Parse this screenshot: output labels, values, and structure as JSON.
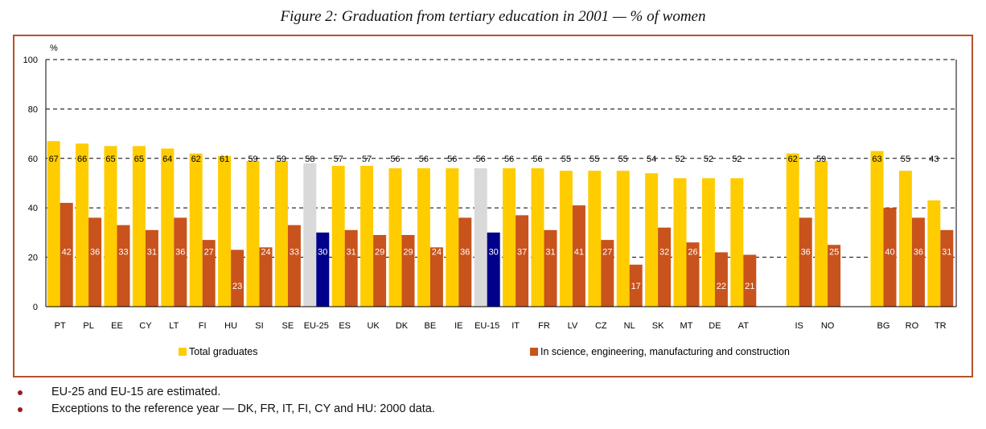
{
  "title": "Figure 2: Graduation from tertiary education in 2001 — % of women",
  "colors": {
    "total": "#ffcc00",
    "science": "#c8531c",
    "estimate_total": "#d9d9d9",
    "estimate_science": "#00008b",
    "frame": "#b5532a"
  },
  "chart_data": {
    "type": "bar",
    "unit_label": "%",
    "ylim": [
      0,
      100
    ],
    "yticks": [
      0,
      20,
      40,
      60,
      80,
      100
    ],
    "grid": "dashed horizontal",
    "legend_position": "bottom",
    "categories": [
      "PT",
      "PL",
      "EE",
      "CY",
      "LT",
      "FI",
      "HU",
      "SI",
      "SE",
      "EU-25",
      "ES",
      "UK",
      "DK",
      "BE",
      "IE",
      "EU-15",
      "IT",
      "FR",
      "LV",
      "CZ",
      "NL",
      "SK",
      "MT",
      "DE",
      "AT",
      "IS",
      "NO",
      "BG",
      "RO",
      "TR"
    ],
    "groups": [
      25,
      2,
      3
    ],
    "estimated": [
      "EU-25",
      "EU-15"
    ],
    "series": [
      {
        "name": "Total graduates",
        "values": [
          67,
          66,
          65,
          65,
          64,
          62,
          61,
          59,
          59,
          58,
          57,
          57,
          56,
          56,
          56,
          56,
          56,
          56,
          55,
          55,
          55,
          54,
          52,
          52,
          52,
          62,
          59,
          63,
          55,
          43
        ]
      },
      {
        "name": "In science, engineering, manufacturing and construction",
        "values": [
          42,
          36,
          33,
          31,
          36,
          27,
          23,
          24,
          33,
          30,
          31,
          29,
          29,
          24,
          36,
          30,
          37,
          31,
          41,
          27,
          17,
          32,
          26,
          22,
          21,
          36,
          25,
          40,
          36,
          31
        ]
      }
    ]
  },
  "notes": [
    "EU-25 and EU-15 are estimated.",
    "Exceptions to the reference year — DK, FR, IT, FI, CY and HU: 2000 data."
  ]
}
